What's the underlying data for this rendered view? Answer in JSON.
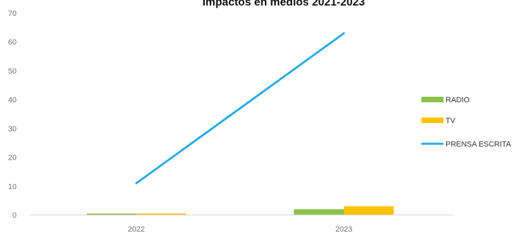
{
  "chart_data": {
    "type": "bar",
    "title": "Impactos en medios 2021-2023",
    "categories": [
      "2022",
      "2023"
    ],
    "ylim": [
      0,
      70
    ],
    "y_ticks": [
      0,
      10,
      20,
      30,
      40,
      50,
      60,
      70
    ],
    "grid": false,
    "legend_position": "right",
    "series": [
      {
        "name": "RADIO",
        "type": "bar",
        "values": [
          0.5,
          2
        ],
        "color": "#8bc34a"
      },
      {
        "name": "TV",
        "type": "bar",
        "values": [
          0.5,
          3
        ],
        "color": "#ffc107"
      },
      {
        "name": "PRENSA ESCRITA",
        "type": "line",
        "values": [
          11,
          63
        ],
        "color": "#29abe2"
      }
    ]
  }
}
